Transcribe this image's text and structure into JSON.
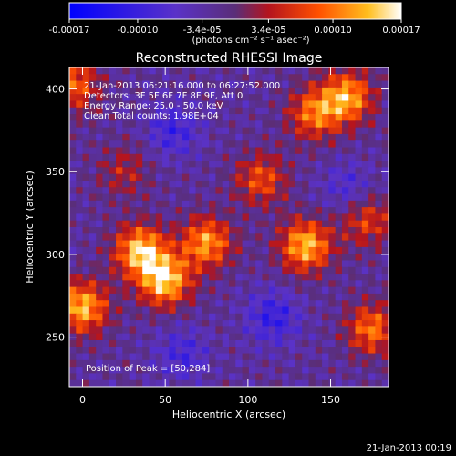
{
  "chart_data": {
    "type": "heatmap",
    "title": "Reconstructed RHESSI Image",
    "xlabel": "Heliocentric X (arcsec)",
    "ylabel": "Heliocentric Y (arcsec)",
    "xlim": [
      -8,
      185
    ],
    "ylim": [
      220,
      413
    ],
    "x_ticks": [
      0,
      50,
      100,
      150
    ],
    "y_ticks": [
      250,
      300,
      350,
      400
    ],
    "colorbar": {
      "label": "(photons cm⁻² s⁻¹ asec⁻²)",
      "range": [
        -0.00017,
        0.00017
      ],
      "ticks": [
        -0.00017,
        -0.0001,
        -3.4e-05,
        3.4e-05,
        0.0001,
        0.00017
      ],
      "tick_labels": [
        "-0.00017",
        "-0.00010",
        "-3.4e-05",
        "3.4e-05",
        "0.00010",
        "0.00017"
      ]
    },
    "annotations": [
      "21-Jan-2013 06:21:16.000 to 06:27:52.000",
      "Detectors: 3F 5F 6F 7F 8F 9F, Att 0",
      "Energy Range: 25.0 - 50.0 keV",
      "Clean     Total counts: 1.98E+04"
    ],
    "peak_label": "Position of Peak = [50,284]",
    "grid": false,
    "bright_regions": [
      {
        "x": 35,
        "y": 302,
        "value": 0.00017
      },
      {
        "x": 50,
        "y": 284,
        "value": 0.00017
      },
      {
        "x": 75,
        "y": 307,
        "value": 0.00014
      },
      {
        "x": 135,
        "y": 305,
        "value": 0.00016
      },
      {
        "x": 160,
        "y": 395,
        "value": 0.00015
      },
      {
        "x": 140,
        "y": 385,
        "value": 0.00012
      },
      {
        "x": 108,
        "y": 345,
        "value": 0.0001
      },
      {
        "x": 0,
        "y": 268,
        "value": 0.00016
      },
      {
        "x": -5,
        "y": 402,
        "value": 0.00011
      },
      {
        "x": 175,
        "y": 255,
        "value": 0.00012
      },
      {
        "x": 172,
        "y": 320,
        "value": 9e-05
      },
      {
        "x": 25,
        "y": 350,
        "value": 6e-05
      }
    ],
    "dim_regions": [
      {
        "x": 55,
        "y": 375,
        "value": -7e-05
      },
      {
        "x": 115,
        "y": 262,
        "value": -8e-05
      },
      {
        "x": 60,
        "y": 240,
        "value": -6e-05
      },
      {
        "x": 160,
        "y": 340,
        "value": -5e-05
      }
    ]
  },
  "footer": {
    "timestamp": "21-Jan-2013 00:19"
  }
}
